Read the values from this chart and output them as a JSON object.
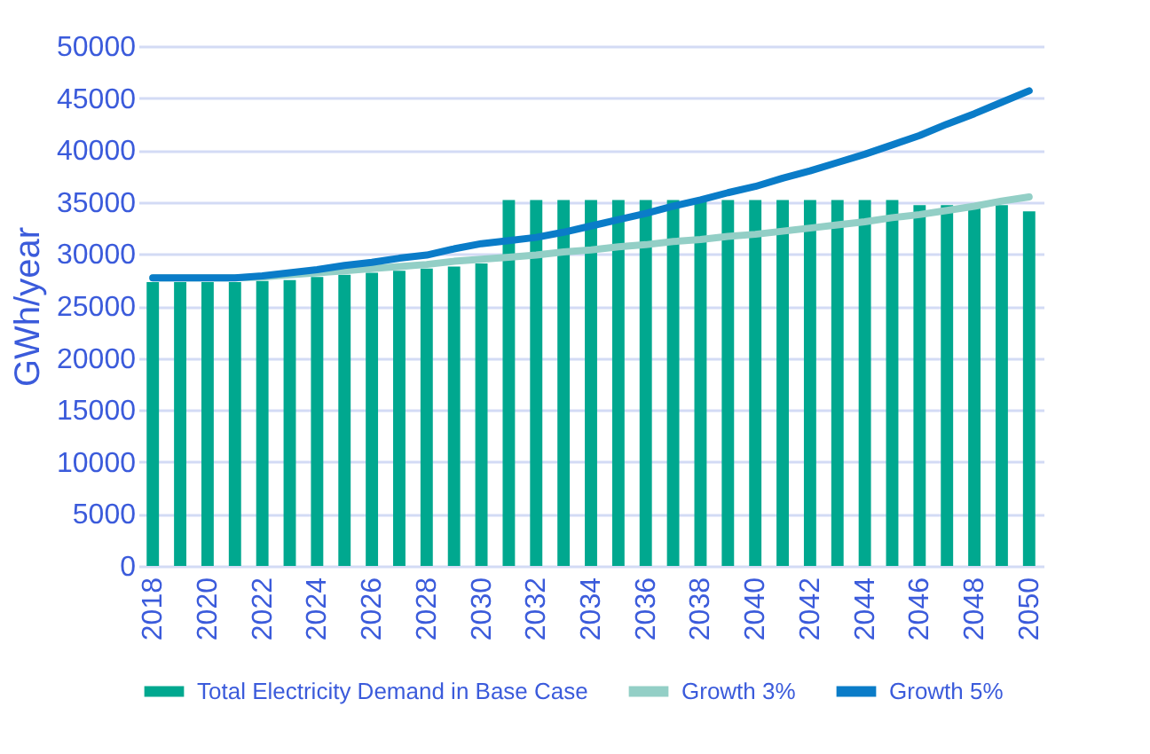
{
  "chart_data": {
    "type": "bar",
    "ylabel": "GWh/year",
    "categories": [
      "2018",
      null,
      "2020",
      null,
      "2022",
      null,
      "2024",
      null,
      "2026",
      null,
      "2028",
      null,
      "2030",
      null,
      "2032",
      null,
      "2034",
      null,
      "2036",
      null,
      "2038",
      null,
      "2040",
      null,
      "2042",
      null,
      "2044",
      null,
      "2046",
      null,
      "2048",
      null,
      "2050"
    ],
    "series": [
      {
        "name": "Total Electricity Demand in Base Case",
        "color": "#00a88f",
        "values": [
          27300,
          27300,
          27300,
          27300,
          27400,
          27500,
          27800,
          28000,
          28200,
          28400,
          28600,
          28800,
          29100,
          35200,
          35200,
          35200,
          35200,
          35200,
          35200,
          35200,
          35200,
          35200,
          35200,
          35200,
          35200,
          35200,
          35200,
          35200,
          34700,
          34700,
          34700,
          34700,
          34100
        ]
      },
      {
        "name": "Growth 3%",
        "type": "line",
        "color": "#93cfc6",
        "values": [
          27700,
          27700,
          27700,
          27700,
          27800,
          28000,
          28200,
          28400,
          28600,
          28800,
          29000,
          29300,
          29500,
          29700,
          29900,
          30200,
          30400,
          30700,
          30900,
          31200,
          31400,
          31700,
          31900,
          32200,
          32500,
          32800,
          33100,
          33500,
          33800,
          34200,
          34600,
          35100,
          35500
        ]
      },
      {
        "name": "Growth 5%",
        "type": "line",
        "color": "#0a7cc8",
        "values": [
          27700,
          27700,
          27700,
          27700,
          27900,
          28200,
          28500,
          28900,
          29200,
          29600,
          29900,
          30500,
          31000,
          31300,
          31600,
          32100,
          32700,
          33300,
          33900,
          34600,
          35200,
          35900,
          36500,
          37300,
          38000,
          38800,
          39600,
          40500,
          41400,
          42500,
          43500,
          44600,
          45700
        ]
      }
    ],
    "ylim": [
      0,
      50000
    ],
    "yticks": [
      0,
      5000,
      10000,
      15000,
      20000,
      25000,
      30000,
      35000,
      40000,
      45000,
      50000
    ],
    "grid": "y",
    "legend": "bottom",
    "line_style": "solid"
  }
}
